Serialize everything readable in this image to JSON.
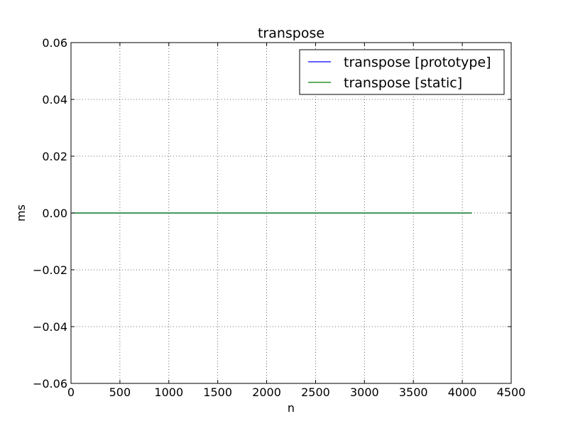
{
  "chart_data": {
    "type": "line",
    "title": "transpose",
    "xlabel": "n",
    "ylabel": "ms",
    "xlim": [
      0,
      4500
    ],
    "ylim": [
      -0.06,
      0.06
    ],
    "x_ticks": [
      0,
      500,
      1000,
      1500,
      2000,
      2500,
      3000,
      3500,
      4000,
      4500
    ],
    "x_tick_labels": [
      "0",
      "500",
      "1000",
      "1500",
      "2000",
      "2500",
      "3000",
      "3500",
      "4000",
      "4500"
    ],
    "y_ticks": [
      0.06,
      0.04,
      0.02,
      0.0,
      -0.02,
      -0.04,
      -0.06
    ],
    "y_tick_labels": [
      "0.06",
      "0.04",
      "0.02",
      "0.00",
      "−0.02",
      "−0.04",
      "−0.06"
    ],
    "grid": true,
    "legend_position": "top-right",
    "series": [
      {
        "name": "transpose [prototype]",
        "color": "#0000ff",
        "x": [
          16,
          4096
        ],
        "y": [
          0.0,
          0.0
        ]
      },
      {
        "name": "transpose [static]",
        "color": "#008000",
        "x": [
          16,
          4096
        ],
        "y": [
          0.0,
          0.0
        ]
      }
    ]
  }
}
